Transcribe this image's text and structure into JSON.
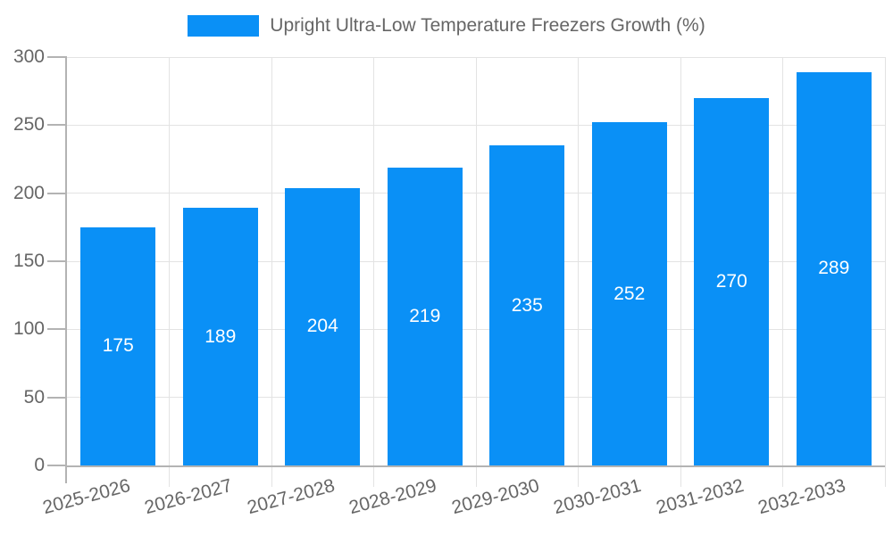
{
  "chart_data": {
    "type": "bar",
    "title": "Upright Ultra-Low Temperature Freezers Growth (%)",
    "legend": {
      "label": "Upright Ultra-Low Temperature Freezers Growth (%)",
      "position": "top-center"
    },
    "categories": [
      "2025-2026",
      "2026-2027",
      "2027-2028",
      "2028-2029",
      "2029-2030",
      "2030-2031",
      "2031-2032",
      "2032-2033"
    ],
    "values": [
      175,
      189,
      204,
      219,
      235,
      252,
      270,
      289
    ],
    "xlabel": "",
    "ylabel": "",
    "ylim": [
      0,
      300
    ],
    "yticks": [
      0,
      50,
      100,
      150,
      200,
      250,
      300
    ],
    "grid": true,
    "bar_label_position": "center",
    "colors": {
      "bar": "#0a90f6",
      "bar_label": "#ffffff",
      "axis_text": "#666666",
      "gridline": "#e3e3e3",
      "axis_line": "#b3b3b3",
      "background": "#ffffff"
    }
  }
}
